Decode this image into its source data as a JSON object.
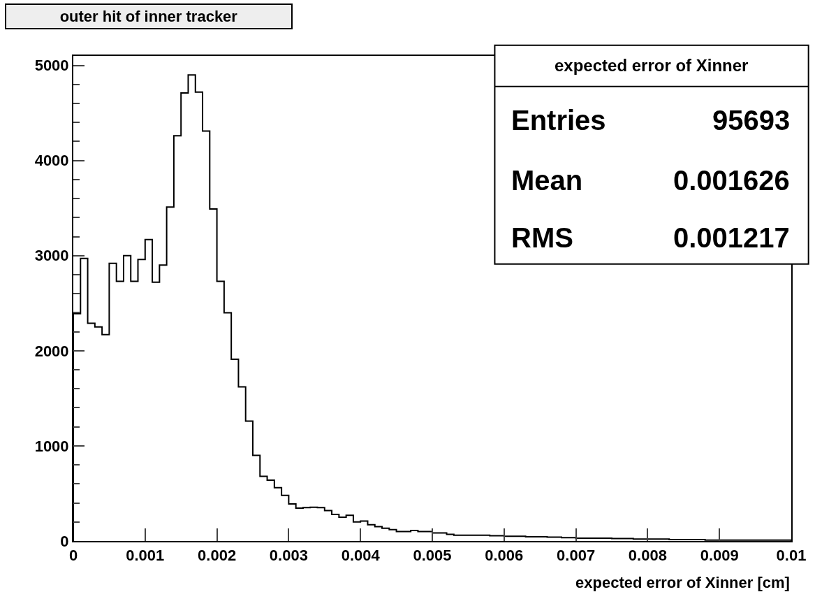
{
  "chart_data": {
    "type": "histogram",
    "title": "outer hit of inner tracker",
    "xlabel": "expected error of Xinner [cm]",
    "annotations": [
      "expected error of Xinner",
      "Entries",
      "95693",
      "Mean",
      "0.001626",
      "RMS",
      "0.001217"
    ],
    "bins": [
      0,
      0.0001,
      0.0002,
      0.0003,
      0.0004,
      0.0005,
      0.0006,
      0.0007,
      0.0008,
      0.0009,
      0.001,
      0.0011,
      0.0012,
      0.0013,
      0.0014,
      0.0015,
      0.0016,
      0.0017,
      0.0018,
      0.0019,
      0.002,
      0.0021,
      0.0022,
      0.0023,
      0.0024,
      0.0025,
      0.0026,
      0.0027,
      0.0028,
      0.0029,
      0.003,
      0.0031,
      0.0032,
      0.0033,
      0.0034,
      0.0035,
      0.0036,
      0.0037,
      0.0038,
      0.0039,
      0.004,
      0.0041,
      0.0042,
      0.0043,
      0.0044,
      0.0045,
      0.0046,
      0.0047,
      0.0048,
      0.0049,
      0.005,
      0.0051,
      0.0052,
      0.0053,
      0.0054,
      0.0055,
      0.0056,
      0.0057,
      0.0058,
      0.0059,
      0.006,
      0.0061,
      0.0062,
      0.0063,
      0.0064,
      0.0065,
      0.0066,
      0.0067,
      0.0068,
      0.0069,
      0.007,
      0.0071,
      0.0072,
      0.0073,
      0.0074,
      0.0075,
      0.0076,
      0.0077,
      0.0078,
      0.0079,
      0.008,
      0.0081,
      0.0082,
      0.0083,
      0.0084,
      0.0085,
      0.0086,
      0.0087,
      0.0088,
      0.0089,
      0.009,
      0.0091,
      0.0092,
      0.0093,
      0.0094,
      0.0095,
      0.0096,
      0.0097,
      0.0098,
      0.0099,
      0.01
    ],
    "values": [
      2390,
      2970,
      2290,
      2250,
      2170,
      2920,
      2730,
      3000,
      2730,
      2960,
      3170,
      2720,
      2900,
      3510,
      4260,
      4710,
      4900,
      4720,
      4310,
      3490,
      2730,
      2400,
      1910,
      1620,
      1260,
      900,
      680,
      640,
      560,
      480,
      390,
      345,
      350,
      355,
      350,
      320,
      280,
      250,
      270,
      200,
      210,
      170,
      150,
      135,
      120,
      100,
      100,
      110,
      100,
      100,
      85,
      85,
      70,
      60,
      60,
      60,
      60,
      60,
      55,
      55,
      50,
      50,
      50,
      45,
      45,
      45,
      40,
      40,
      35,
      35,
      30,
      30,
      30,
      30,
      30,
      25,
      25,
      25,
      20,
      20,
      20,
      20,
      20,
      15,
      15,
      15,
      15,
      15,
      10,
      10,
      10,
      10,
      10,
      10,
      10,
      10,
      10,
      10,
      10,
      10
    ],
    "color": "#000000",
    "xlim": [
      0,
      0.01
    ],
    "ylim": [
      0,
      5100
    ],
    "xticks": [
      {
        "value": 0,
        "label": "0"
      },
      0.001,
      0.002,
      0.003,
      0.004,
      0.005,
      0.006,
      0.007,
      0.008,
      0.009,
      {
        "value": 0.01,
        "label": "0.01"
      }
    ],
    "yticks": [
      0,
      {
        "value": 200,
        "label": null
      },
      {
        "value": 400,
        "label": null
      },
      {
        "value": 600,
        "label": null
      },
      {
        "value": 800,
        "label": null
      },
      1000,
      {
        "value": 1200,
        "label": null
      },
      {
        "value": 1400,
        "label": null
      },
      {
        "value": 1600,
        "label": null
      },
      {
        "value": 1800,
        "label": null
      },
      2000,
      {
        "value": 2200,
        "label": null
      },
      {
        "value": 2400,
        "label": null
      },
      {
        "value": 2600,
        "label": null
      },
      {
        "value": 2800,
        "label": null
      },
      3000,
      {
        "value": 3200,
        "label": null
      },
      {
        "value": 3400,
        "label": null
      },
      {
        "value": 3600,
        "label": null
      },
      {
        "value": 3800,
        "label": null
      },
      4000,
      {
        "value": 4200,
        "label": null
      },
      {
        "value": 4400,
        "label": null
      },
      {
        "value": 4600,
        "label": null
      },
      {
        "value": 4800,
        "label": null
      },
      5000
    ]
  }
}
